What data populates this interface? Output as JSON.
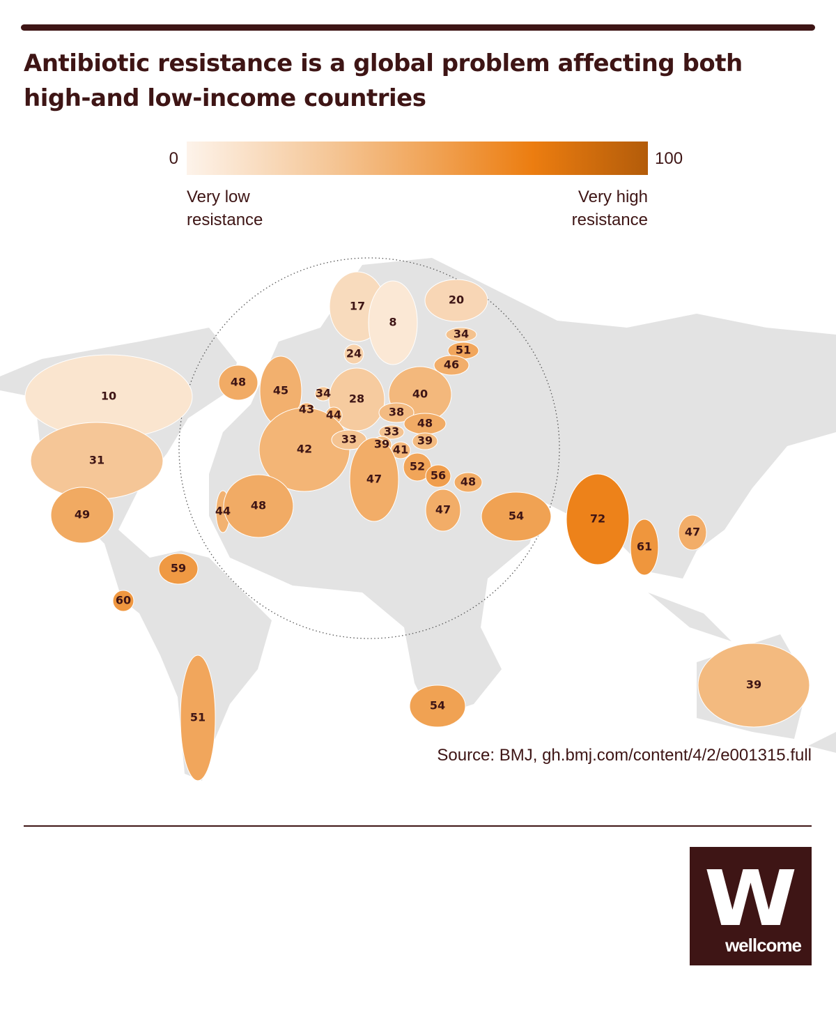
{
  "title": "Antibiotic resistance is a global problem affecting both high-and low-income countries",
  "legend": {
    "min": 0,
    "max": 100,
    "low_label": "Very low resistance",
    "high_label": "Very high resistance"
  },
  "map": {
    "values": [
      17,
      8,
      20,
      34,
      51,
      46,
      24,
      10,
      48,
      45,
      34,
      28,
      40,
      43,
      44,
      38,
      48,
      33,
      31,
      42,
      33,
      39,
      41,
      39,
      52,
      56,
      48,
      47,
      49,
      44,
      48,
      47,
      54,
      72,
      61,
      47,
      59,
      60,
      51,
      54,
      39
    ]
  },
  "logo": {
    "mark": "W",
    "name": "wellcome"
  },
  "source": "Source: BMJ, gh.bmj.com/content/4/2/e001315.full"
}
